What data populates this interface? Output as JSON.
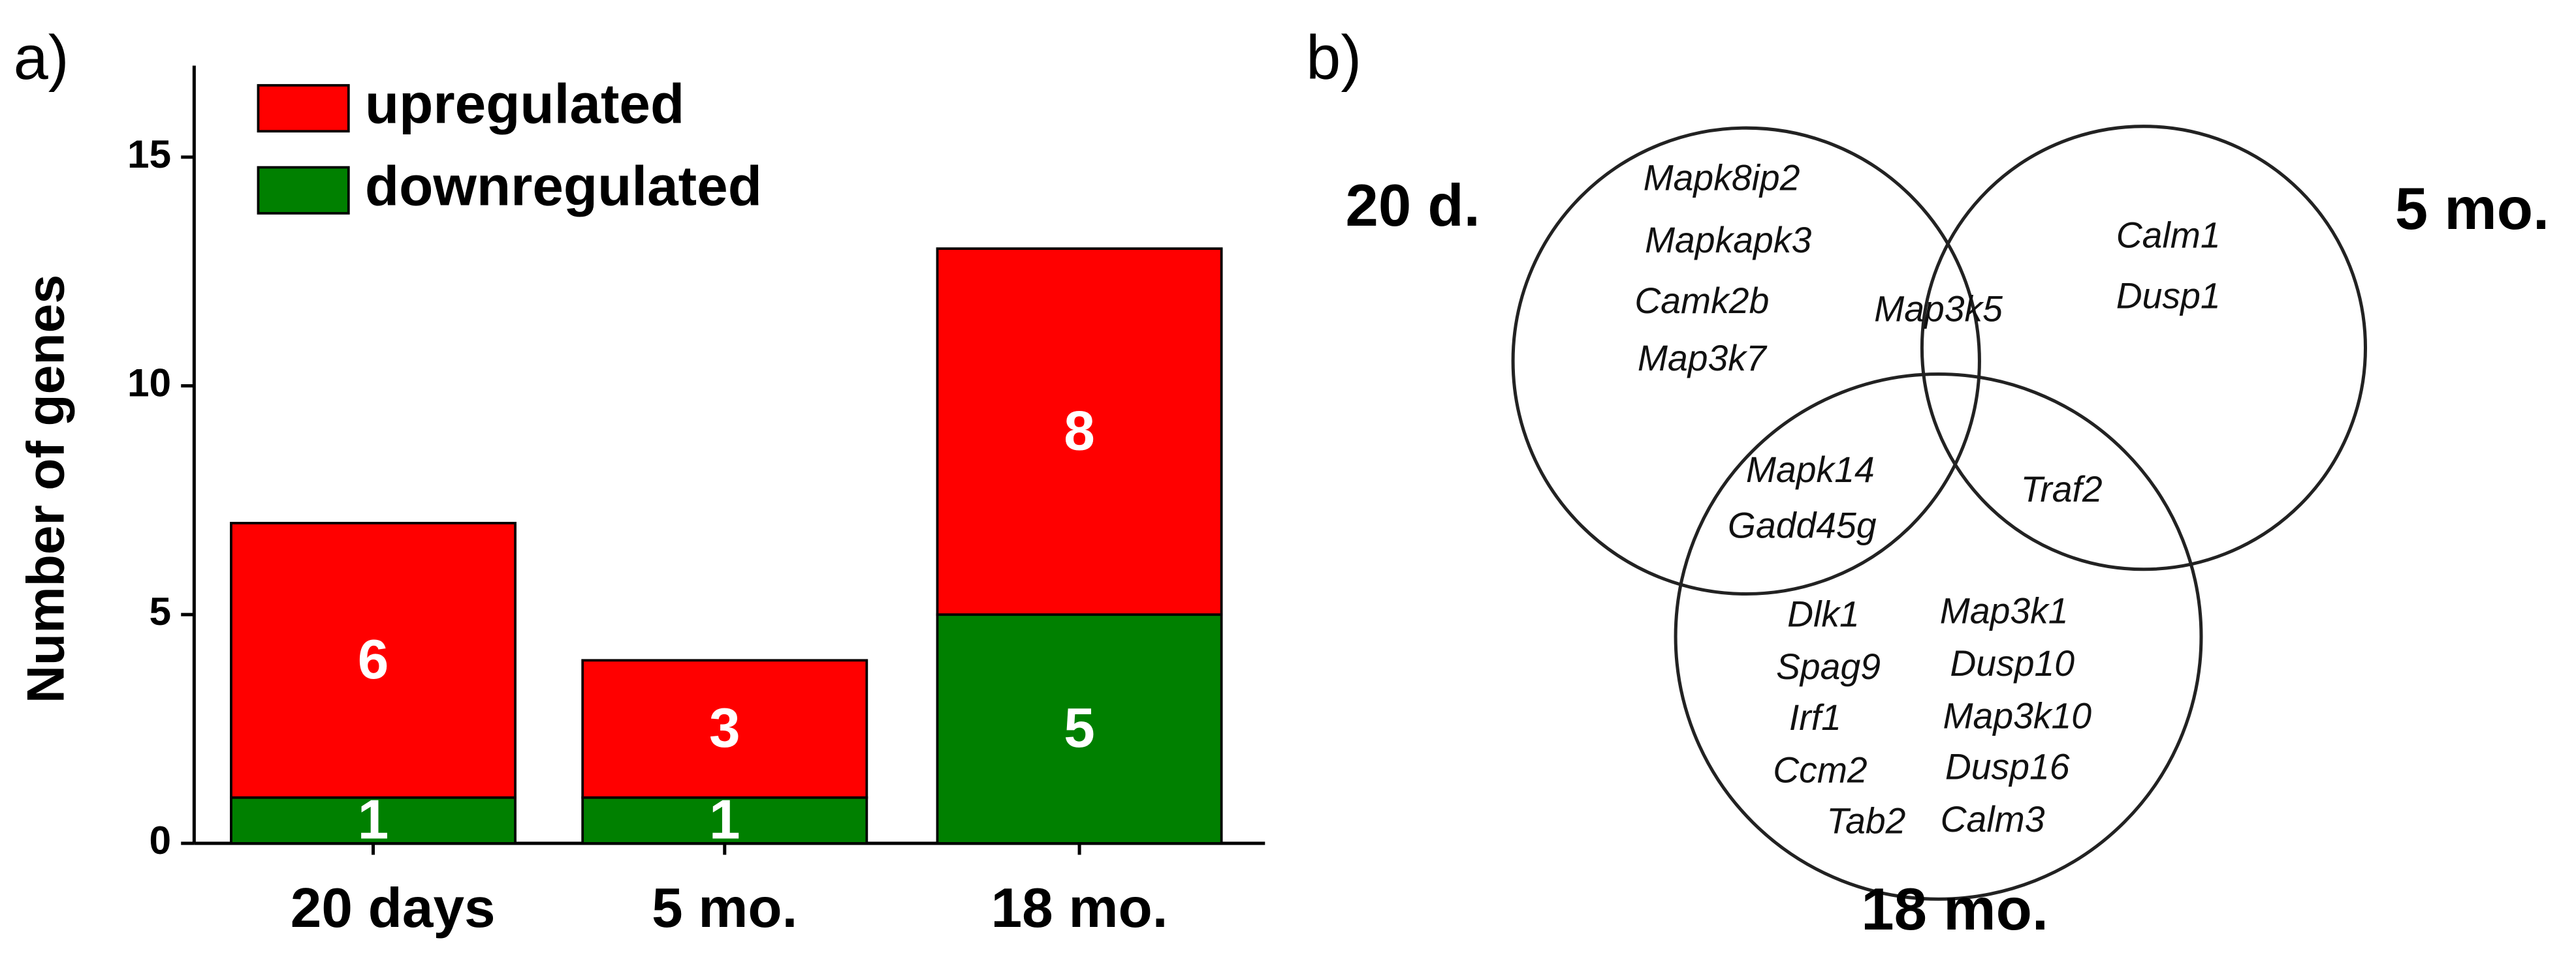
{
  "panel_labels": [
    "a)",
    "b)"
  ],
  "chart_data": {
    "type": "stacked_bar",
    "ylabel": "Number of genes",
    "categories": [
      "20 days",
      "5 mo.",
      "18 mo."
    ],
    "series": [
      {
        "name": "downregulated",
        "color": "#008000",
        "values": [
          1,
          1,
          5
        ]
      },
      {
        "name": "upregulated",
        "color": "#ff0000",
        "values": [
          6,
          3,
          8
        ]
      }
    ],
    "ylim": [
      0,
      17
    ],
    "yticks": [
      0,
      5,
      10,
      15
    ],
    "legend": "upper left"
  },
  "venn": {
    "sets": [
      "20 d.",
      "5 mo.",
      "18 mo."
    ],
    "regions": [
      {
        "sets": "20 d.",
        "genes": [
          "Mapk8ip2",
          "Mapkapk3",
          "Camk2b",
          "Map3k7"
        ]
      },
      {
        "sets": "20 d. & 5 mo.",
        "genes": [
          "Map3k5"
        ]
      },
      {
        "sets": "5 mo.",
        "genes": [
          "Calm1",
          "Dusp1"
        ]
      },
      {
        "sets": "20 d. & 18 mo.",
        "genes": [
          "Mapk14",
          "Gadd45g"
        ]
      },
      {
        "sets": "5 mo. & 18 mo.",
        "genes": [
          "Traf2"
        ]
      },
      {
        "sets": "18 mo.",
        "genes": [
          "Dlk1",
          "Spag9",
          "Irf1",
          "Ccm2",
          "Tab2",
          "Map3k1",
          "Dusp10",
          "Map3k10",
          "Dusp16",
          "Calm3"
        ]
      }
    ]
  }
}
